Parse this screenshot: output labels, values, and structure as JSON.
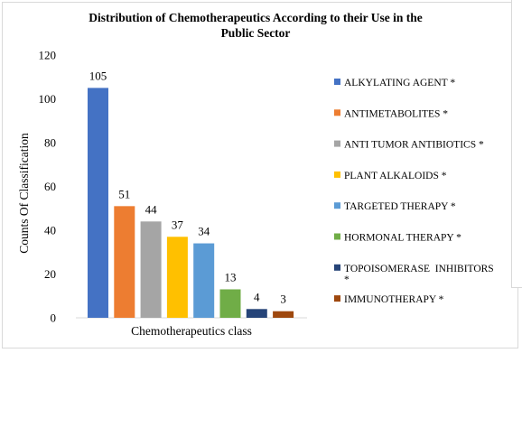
{
  "chart_data": {
    "type": "bar",
    "title": [
      "Distribution of Chemotherapeutics According to their Use in the",
      "Public Sector"
    ],
    "xlabel": "Chemotherapeutics class",
    "ylabel": "Counts Of Classification",
    "ylim": [
      0,
      120
    ],
    "yticks": [
      "0",
      "20",
      "40",
      "60",
      "80",
      "100",
      "120"
    ],
    "grid": false,
    "legend_position": "right",
    "series": [
      {
        "name": "ALKYLATING AGENT *",
        "values": [
          105
        ],
        "color": "#4472c4"
      },
      {
        "name": "ANTIMETABOLITES *",
        "values": [
          51
        ],
        "color": "#ed7d31"
      },
      {
        "name": "ANTI TUMOR ANTIBIOTICS *",
        "values": [
          44
        ],
        "color": "#a5a5a5"
      },
      {
        "name": "PLANT ALKALOIDS *",
        "values": [
          37
        ],
        "color": "#ffc000"
      },
      {
        "name": "TARGETED THERAPY *",
        "values": [
          34
        ],
        "color": "#5b9bd5"
      },
      {
        "name": "HORMONAL THERAPY *",
        "values": [
          13
        ],
        "color": "#70ad47"
      },
      {
        "name": "TOPOISOMERASE  INHIBITORS *",
        "legend_lines": [
          "TOPOISOMERASE  INHIBITORS",
          "*"
        ],
        "values": [
          4
        ],
        "color": "#264478"
      },
      {
        "name": "IMMUNOTHERAPY *",
        "values": [
          3
        ],
        "color": "#9e480e"
      }
    ]
  }
}
